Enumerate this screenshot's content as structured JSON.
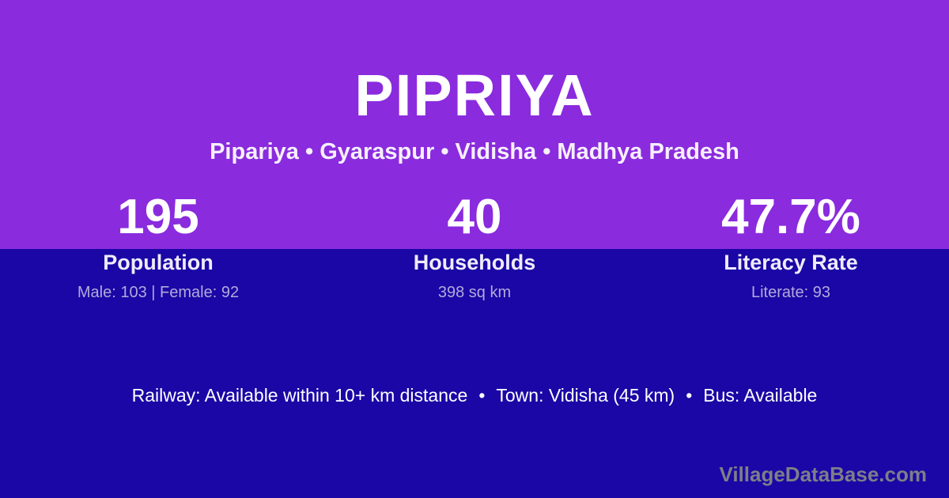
{
  "page": {
    "title": "PIPRIYA",
    "subtitle": "Pipariya • Gyaraspur • Vidisha • Madhya Pradesh",
    "watermark": "VillageDataBase.com"
  },
  "colors": {
    "top_background": "#8A2BDE",
    "bottom_background": "#1A07A5",
    "text_primary": "#FFFFFF",
    "text_subtitle": "#F6EFFC",
    "text_muted": "#B3AADC",
    "watermark": "#7E7E88"
  },
  "stats": [
    {
      "value": "195",
      "label": "Population",
      "detail": "Male: 103 | Female: 92"
    },
    {
      "value": "40",
      "label": "Households",
      "detail": "398 sq km"
    },
    {
      "value": "47.7%",
      "label": "Literacy Rate",
      "detail": "Literate: 93"
    }
  ],
  "footer": {
    "bullet": "•",
    "railway": "Railway: Available within 10+ km distance",
    "town": "Town: Vidisha (45 km)",
    "bus": "Bus: Available"
  }
}
